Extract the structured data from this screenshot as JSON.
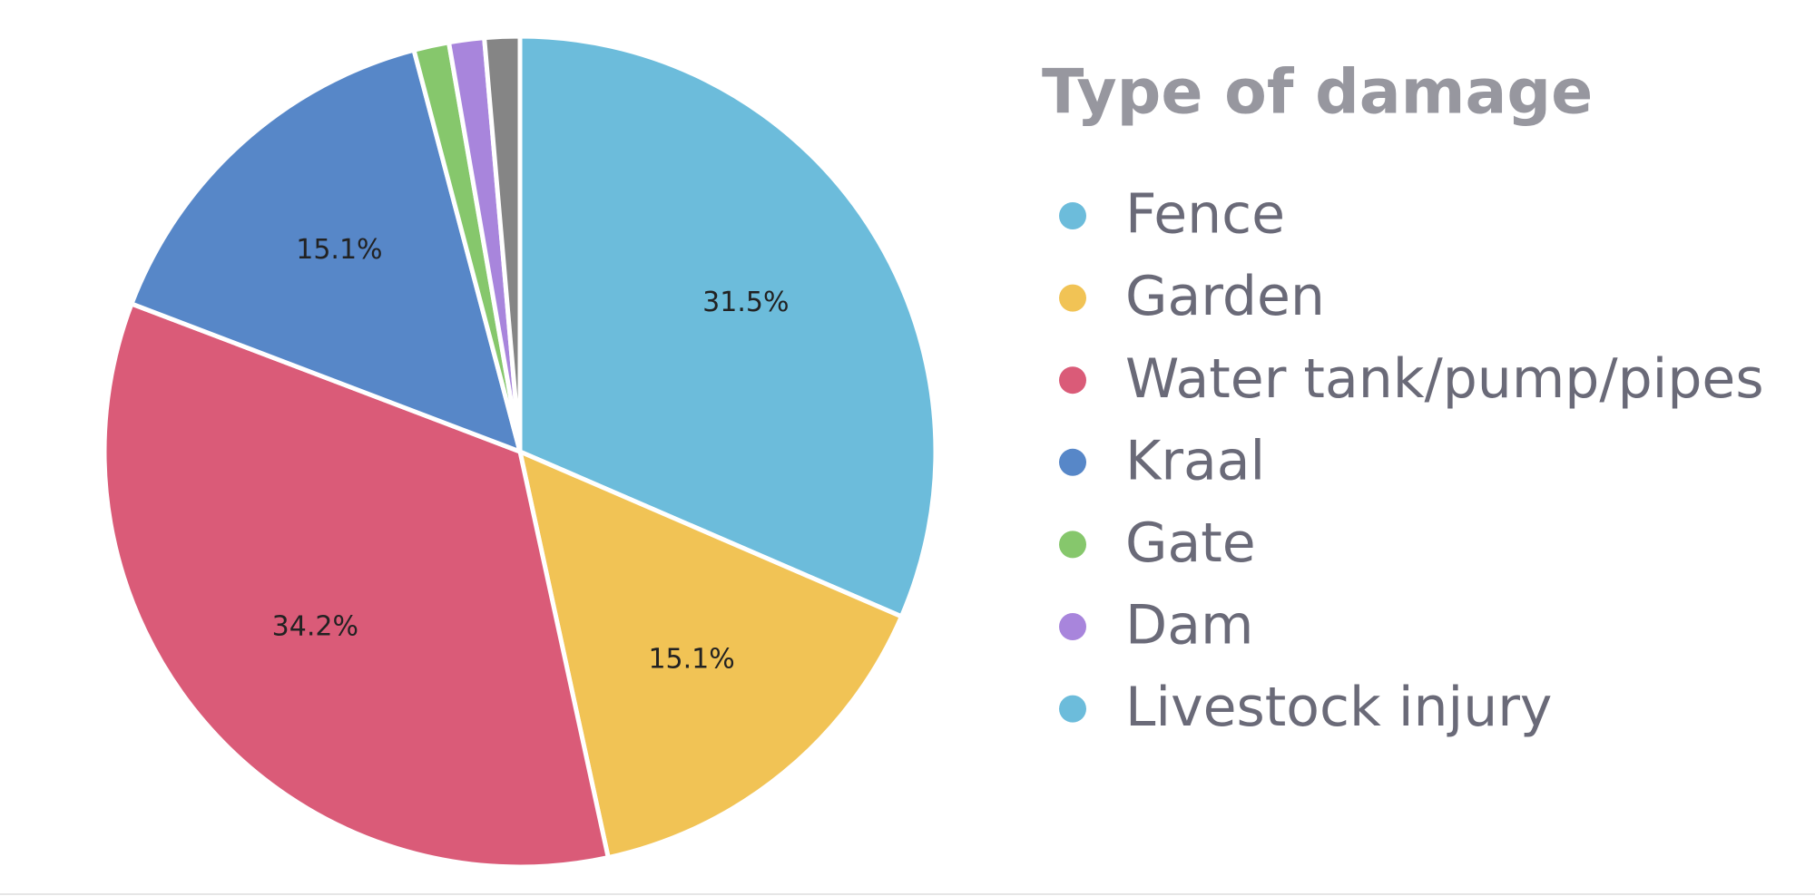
{
  "chart_data": {
    "type": "pie",
    "legend_title": "Type of damage",
    "categories": [
      "Fence",
      "Garden",
      "Water tank/pump/pipes",
      "Kraal",
      "Gate",
      "Dam",
      "Livestock injury"
    ],
    "values": [
      31.5,
      15.1,
      34.2,
      15.1,
      1.37,
      1.37,
      1.37
    ],
    "value_labels": [
      "31.5%",
      "15.1%",
      "34.2%",
      "15.1%",
      null,
      null,
      null
    ],
    "colors": [
      "#6cbcdb",
      "#f1c355",
      "#da5b78",
      "#5787c8",
      "#86c76c",
      "#a885dc",
      "#858585"
    ],
    "legend_colors": [
      "#6cbcdb",
      "#f1c355",
      "#da5b78",
      "#5787c8",
      "#86c76c",
      "#a885dc",
      "#6cbcdb"
    ],
    "legend": "right"
  }
}
